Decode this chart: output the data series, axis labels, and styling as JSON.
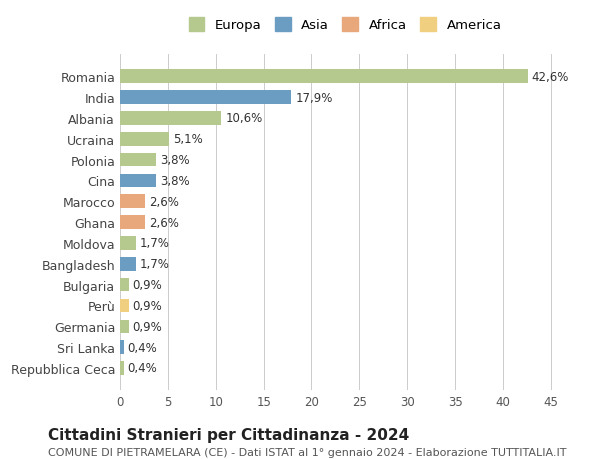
{
  "categories": [
    "Repubblica Ceca",
    "Sri Lanka",
    "Germania",
    "Perù",
    "Bulgaria",
    "Bangladesh",
    "Moldova",
    "Ghana",
    "Marocco",
    "Cina",
    "Polonia",
    "Ucraina",
    "Albania",
    "India",
    "Romania"
  ],
  "values": [
    0.4,
    0.4,
    0.9,
    0.9,
    0.9,
    1.7,
    1.7,
    2.6,
    2.6,
    3.8,
    3.8,
    5.1,
    10.6,
    17.9,
    42.6
  ],
  "labels": [
    "0,4%",
    "0,4%",
    "0,9%",
    "0,9%",
    "0,9%",
    "1,7%",
    "1,7%",
    "2,6%",
    "2,6%",
    "3,8%",
    "3,8%",
    "5,1%",
    "10,6%",
    "17,9%",
    "42,6%"
  ],
  "continents": [
    "Europa",
    "Asia",
    "Europa",
    "America",
    "Europa",
    "Asia",
    "Europa",
    "Africa",
    "Africa",
    "Asia",
    "Europa",
    "Europa",
    "Europa",
    "Asia",
    "Europa"
  ],
  "colors": {
    "Europa": "#b5c98e",
    "Asia": "#6b9dc2",
    "Africa": "#e8a87c",
    "America": "#f0d080"
  },
  "legend_order": [
    "Europa",
    "Asia",
    "Africa",
    "America"
  ],
  "xlim": [
    0,
    47
  ],
  "xticks": [
    0,
    5,
    10,
    15,
    20,
    25,
    30,
    35,
    40,
    45
  ],
  "title": "Cittadini Stranieri per Cittadinanza - 2024",
  "subtitle": "COMUNE DI PIETRAMELARA (CE) - Dati ISTAT al 1° gennaio 2024 - Elaborazione TUTTITALIA.IT",
  "bg_color": "#ffffff",
  "bar_height": 0.65,
  "grid_color": "#cccccc",
  "label_fontsize": 8.5,
  "title_fontsize": 11,
  "subtitle_fontsize": 8
}
